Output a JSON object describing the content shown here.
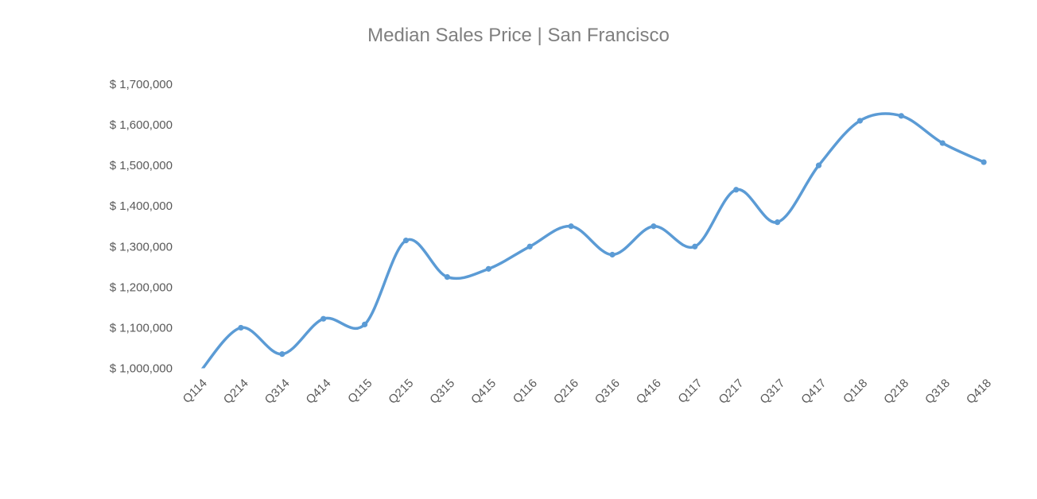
{
  "chart_data": {
    "type": "line",
    "title": "Median Sales Price | San Francisco",
    "xlabel": "",
    "ylabel": "",
    "categories": [
      "Q114",
      "Q214",
      "Q314",
      "Q414",
      "Q115",
      "Q215",
      "Q315",
      "Q415",
      "Q116",
      "Q216",
      "Q316",
      "Q416",
      "Q117",
      "Q217",
      "Q317",
      "Q417",
      "Q118",
      "Q218",
      "Q318",
      "Q418"
    ],
    "series": [
      {
        "values": [
          990000,
          1100000,
          1035000,
          1122000,
          1108000,
          1315000,
          1225000,
          1245000,
          1300000,
          1350000,
          1280000,
          1350000,
          1300000,
          1440000,
          1360000,
          1500000,
          1610000,
          1622000,
          1555000,
          1508000
        ]
      }
    ],
    "ylim": [
      1000000,
      1700000
    ],
    "y_ticks": [
      1000000,
      1100000,
      1200000,
      1300000,
      1400000,
      1500000,
      1600000,
      1700000
    ],
    "y_tick_labels": [
      "$ 1,000,000",
      "$ 1,100,000",
      "$ 1,200,000",
      "$ 1,300,000",
      "$ 1,400,000",
      "$ 1,500,000",
      "$ 1,600,000",
      "$ 1,700,000"
    ],
    "grid": false,
    "legend": "none",
    "smooth": true,
    "line_color": "#5b9bd5",
    "text_color": "#595959",
    "title_color": "#7f7f7f"
  }
}
